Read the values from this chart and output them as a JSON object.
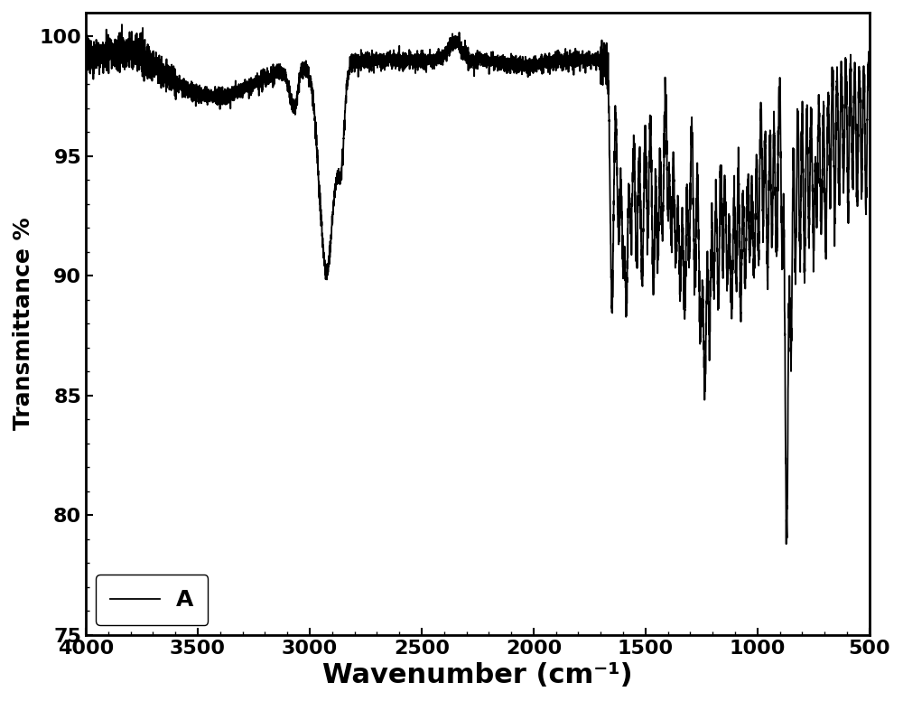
{
  "title": "",
  "xlabel": "Wavenumber (cm⁻¹)",
  "ylabel": "Transmittance %",
  "xlim": [
    4000,
    500
  ],
  "ylim": [
    75,
    101
  ],
  "yticks": [
    75,
    80,
    85,
    90,
    95,
    100
  ],
  "xticks": [
    4000,
    3500,
    3000,
    2500,
    2000,
    1500,
    1000,
    500
  ],
  "legend_label": "A",
  "line_color": "#000000",
  "line_width": 1.3,
  "background_color": "#ffffff",
  "xlabel_fontsize": 22,
  "ylabel_fontsize": 18,
  "tick_fontsize": 16,
  "legend_fontsize": 16
}
